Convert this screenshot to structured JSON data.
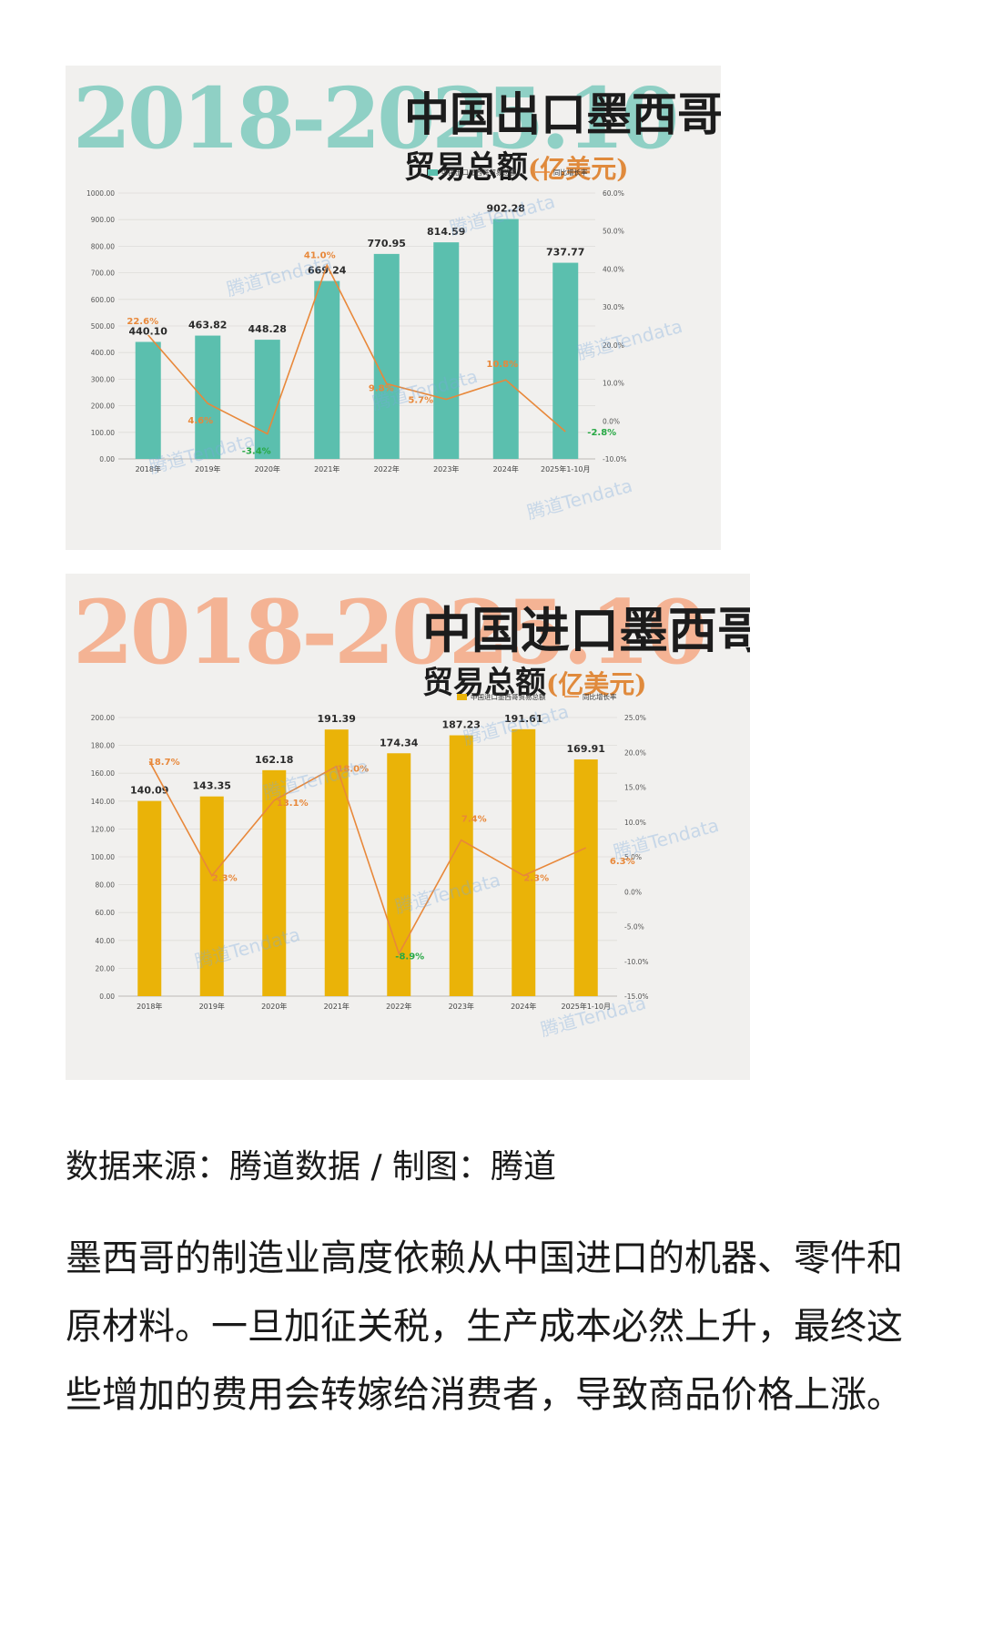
{
  "chart_data": [
    {
      "type": "bar",
      "big_year": "2018-2025.10",
      "title": "中国出口墨西哥",
      "subtitle_main": "贸易总额",
      "subtitle_unit": "(亿美元)",
      "categories": [
        "2018年",
        "2019年",
        "2020年",
        "2021年",
        "2022年",
        "2023年",
        "2024年",
        "2025年1-10月"
      ],
      "series": [
        {
          "name": "中国出口墨西哥贸易总额",
          "values": [
            440.1,
            463.82,
            448.28,
            669.24,
            770.95,
            814.59,
            902.28,
            737.77
          ]
        },
        {
          "name": "同比增长率",
          "values": [
            22.6,
            4.6,
            -3.4,
            41.0,
            9.8,
            5.7,
            10.8,
            -2.8
          ]
        }
      ],
      "value_labels": [
        "440.10",
        "463.82",
        "448.28",
        "669.24",
        "770.95",
        "814.59",
        "902.28",
        "737.77"
      ],
      "rate_labels": [
        "22.6%",
        "4.6%",
        "-3.4%",
        "41.0%",
        "9.8%",
        "5.7%",
        "10.8%",
        "-2.8%"
      ],
      "left_axis_ticks": [
        "0.00",
        "100.00",
        "200.00",
        "300.00",
        "400.00",
        "500.00",
        "600.00",
        "700.00",
        "800.00",
        "900.00",
        "1000.00"
      ],
      "right_axis_ticks": [
        "-10.0%",
        "0.0%",
        "10.0%",
        "20.0%",
        "30.0%",
        "40.0%",
        "50.0%",
        "60.0%"
      ],
      "ylim": [
        0,
        1000
      ],
      "y2lim": [
        -10,
        60
      ],
      "legend_position": "top-right",
      "colors": {
        "bar": "#5bbfae",
        "line": "#e8883a",
        "label_positive": "#e8883a",
        "label_negative": "#27a844"
      }
    },
    {
      "type": "bar",
      "big_year": "2018-2025.10",
      "title": "中国进口墨西哥",
      "subtitle_main": "贸易总额",
      "subtitle_unit": "(亿美元)",
      "categories": [
        "2018年",
        "2019年",
        "2020年",
        "2021年",
        "2022年",
        "2023年",
        "2024年",
        "2025年1-10月"
      ],
      "series": [
        {
          "name": "中国进口墨西哥贸易总额",
          "values": [
            140.09,
            143.35,
            162.18,
            191.39,
            174.34,
            187.23,
            191.61,
            169.91
          ]
        },
        {
          "name": "同比增长率",
          "values": [
            18.7,
            2.3,
            13.1,
            18.0,
            -8.9,
            7.4,
            2.3,
            6.3
          ]
        }
      ],
      "value_labels": [
        "140.09",
        "143.35",
        "162.18",
        "191.39",
        "174.34",
        "187.23",
        "191.61",
        "169.91"
      ],
      "rate_labels": [
        "18.7%",
        "2.3%",
        "13.1%",
        "18.0%",
        "-8.9%",
        "7.4%",
        "2.3%",
        "6.3%"
      ],
      "left_axis_ticks": [
        "0.00",
        "20.00",
        "40.00",
        "60.00",
        "80.00",
        "100.00",
        "120.00",
        "140.00",
        "160.00",
        "180.00",
        "200.00"
      ],
      "right_axis_ticks": [
        "-15.0%",
        "-10.0%",
        "-5.0%",
        "0.0%",
        "5.0%",
        "10.0%",
        "15.0%",
        "20.0%",
        "25.0%"
      ],
      "ylim": [
        0,
        200
      ],
      "y2lim": [
        -15,
        25
      ],
      "legend_position": "top-right",
      "colors": {
        "bar": "#eab308",
        "line": "#e8883a",
        "label_positive": "#e8883a",
        "label_negative": "#27a844"
      }
    }
  ],
  "watermark": "腾道Tendata",
  "footer": {
    "source": "数据来源：腾道数据 / 制图：腾道"
  },
  "body": {
    "paragraph": "墨西哥的制造业高度依赖从中国进口的机器、零件和原材料。一旦加征关税，生产成本必然上升，最终这些增加的费用会转嫁给消费者，导致商品价格上涨。"
  }
}
